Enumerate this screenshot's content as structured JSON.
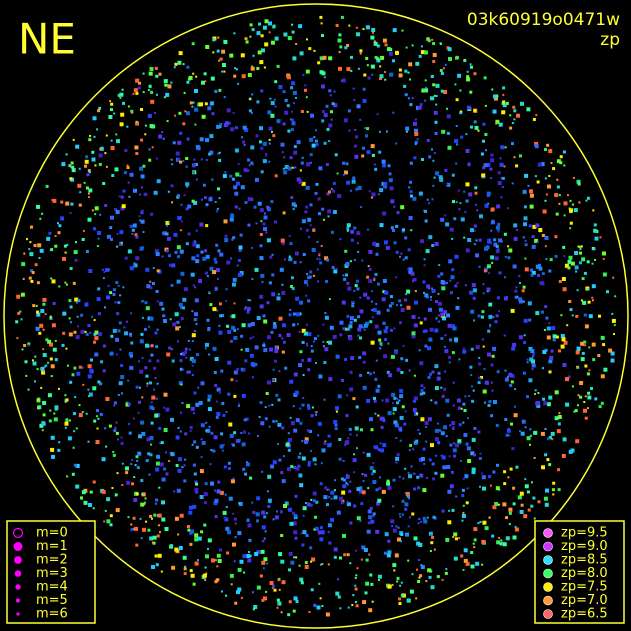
{
  "header": {
    "title": "NE",
    "frame_id": "03k60919o0471w",
    "color_key": "zp"
  },
  "magnitude_legend": {
    "color": "#ff00ff",
    "items": [
      {
        "label": "m=0"
      },
      {
        "label": "m=1"
      },
      {
        "label": "m=2"
      },
      {
        "label": "m=3"
      },
      {
        "label": "m=4"
      },
      {
        "label": "m=5"
      },
      {
        "label": "m=6"
      }
    ]
  },
  "zp_legend": {
    "items": [
      {
        "label": "zp=9.5",
        "color": "#ff55ff"
      },
      {
        "label": "zp=9.0",
        "color": "#cc33ff"
      },
      {
        "label": "zp=8.5",
        "color": "#33ddff"
      },
      {
        "label": "zp=8.0",
        "color": "#33ff66"
      },
      {
        "label": "zp=7.5",
        "color": "#ffee00"
      },
      {
        "label": "zp=7.0",
        "color": "#ff9933"
      },
      {
        "label": "zp=6.5",
        "color": "#ff6666"
      }
    ]
  }
}
